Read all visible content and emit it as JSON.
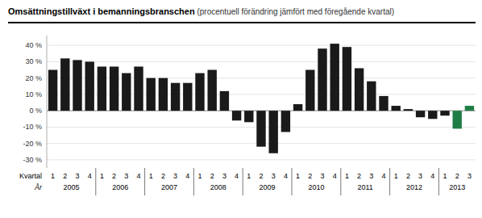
{
  "chart_data": {
    "type": "bar",
    "title": "Omsättningstillväxt i bemanningsbranschen",
    "subtitle": " (procentuell förändring jämfört med föregående kvartal)",
    "xlabel": "Kvartal",
    "xlabel_group": "År",
    "categories": [
      "1",
      "2",
      "3",
      "4",
      "1",
      "2",
      "3",
      "4",
      "1",
      "2",
      "3",
      "4",
      "1",
      "2",
      "3",
      "4",
      "1",
      "2",
      "3",
      "4",
      "1",
      "2",
      "3",
      "4",
      "1",
      "2",
      "3",
      "4",
      "1",
      "2",
      "3",
      "4",
      "1",
      "2",
      "3"
    ],
    "groups": [
      "2005",
      "2005",
      "2005",
      "2005",
      "2006",
      "2006",
      "2006",
      "2006",
      "2007",
      "2007",
      "2007",
      "2007",
      "2008",
      "2008",
      "2008",
      "2008",
      "2009",
      "2009",
      "2009",
      "2009",
      "2010",
      "2010",
      "2010",
      "2010",
      "2011",
      "2011",
      "2011",
      "2011",
      "2012",
      "2012",
      "2012",
      "2012",
      "2013",
      "2013",
      "2013"
    ],
    "values": [
      25,
      32,
      31,
      30,
      27,
      27,
      23,
      27,
      20,
      20,
      17,
      17,
      23,
      25,
      12,
      -6,
      -7,
      -22,
      -26,
      -13,
      4,
      25,
      38,
      41,
      39,
      26,
      18,
      9,
      3,
      1,
      -4,
      -5,
      -3,
      -11,
      3
    ],
    "colors": [
      "#1a1a1a",
      "#1a1a1a",
      "#1a1a1a",
      "#1a1a1a",
      "#1a1a1a",
      "#1a1a1a",
      "#1a1a1a",
      "#1a1a1a",
      "#1a1a1a",
      "#1a1a1a",
      "#1a1a1a",
      "#1a1a1a",
      "#1a1a1a",
      "#1a1a1a",
      "#1a1a1a",
      "#1a1a1a",
      "#1a1a1a",
      "#1a1a1a",
      "#1a1a1a",
      "#1a1a1a",
      "#1a1a1a",
      "#1a1a1a",
      "#1a1a1a",
      "#1a1a1a",
      "#1a1a1a",
      "#1a1a1a",
      "#1a1a1a",
      "#1a1a1a",
      "#1a1a1a",
      "#1a1a1a",
      "#1a1a1a",
      "#1a1a1a",
      "#1a1a1a",
      "#1e7e45",
      "#1e7e45"
    ],
    "ylim": [
      -35,
      46
    ],
    "yticks": [
      {
        "value": -30,
        "label": "-30 %"
      },
      {
        "value": -20,
        "label": "-20 %"
      },
      {
        "value": -10,
        "label": "-10 %"
      },
      {
        "value": 0,
        "label": "0 %"
      },
      {
        "value": 10,
        "label": "10 %"
      },
      {
        "value": 20,
        "label": "20 %"
      },
      {
        "value": 30,
        "label": "30 %"
      },
      {
        "value": 40,
        "label": "40 %"
      }
    ],
    "grid": true
  }
}
